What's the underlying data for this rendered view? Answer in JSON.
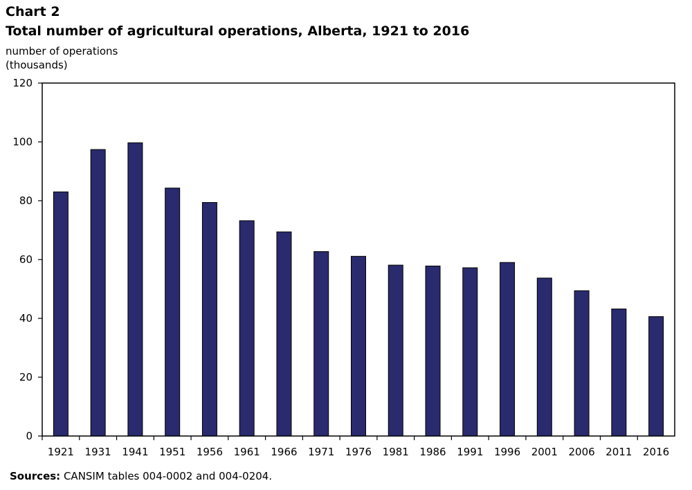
{
  "chart_data": {
    "type": "bar",
    "chart_number": "Chart 2",
    "title": "Total number of agricultural  operations, Alberta, 1921 to 2016",
    "ylabel_line1": "number of operations",
    "ylabel_line2": "(thousands)",
    "xlabel": "",
    "categories": [
      "1921",
      "1931",
      "1941",
      "1951",
      "1956",
      "1961",
      "1966",
      "1971",
      "1976",
      "1981",
      "1986",
      "1991",
      "1996",
      "2001",
      "2006",
      "2011",
      "2016"
    ],
    "values": [
      83.0,
      97.4,
      99.7,
      84.3,
      79.4,
      73.2,
      69.4,
      62.7,
      61.1,
      58.1,
      57.8,
      57.2,
      59.0,
      53.7,
      49.4,
      43.2,
      40.6
    ],
    "ylim": [
      0,
      120
    ],
    "yticks": [
      0,
      20,
      40,
      60,
      80,
      100,
      120
    ],
    "bar_color": "#2a2a6e",
    "grid": false,
    "legend": "none"
  },
  "source_label": "Sources:",
  "source_text": " CANSIM tables 004-0002 and 004-0204."
}
